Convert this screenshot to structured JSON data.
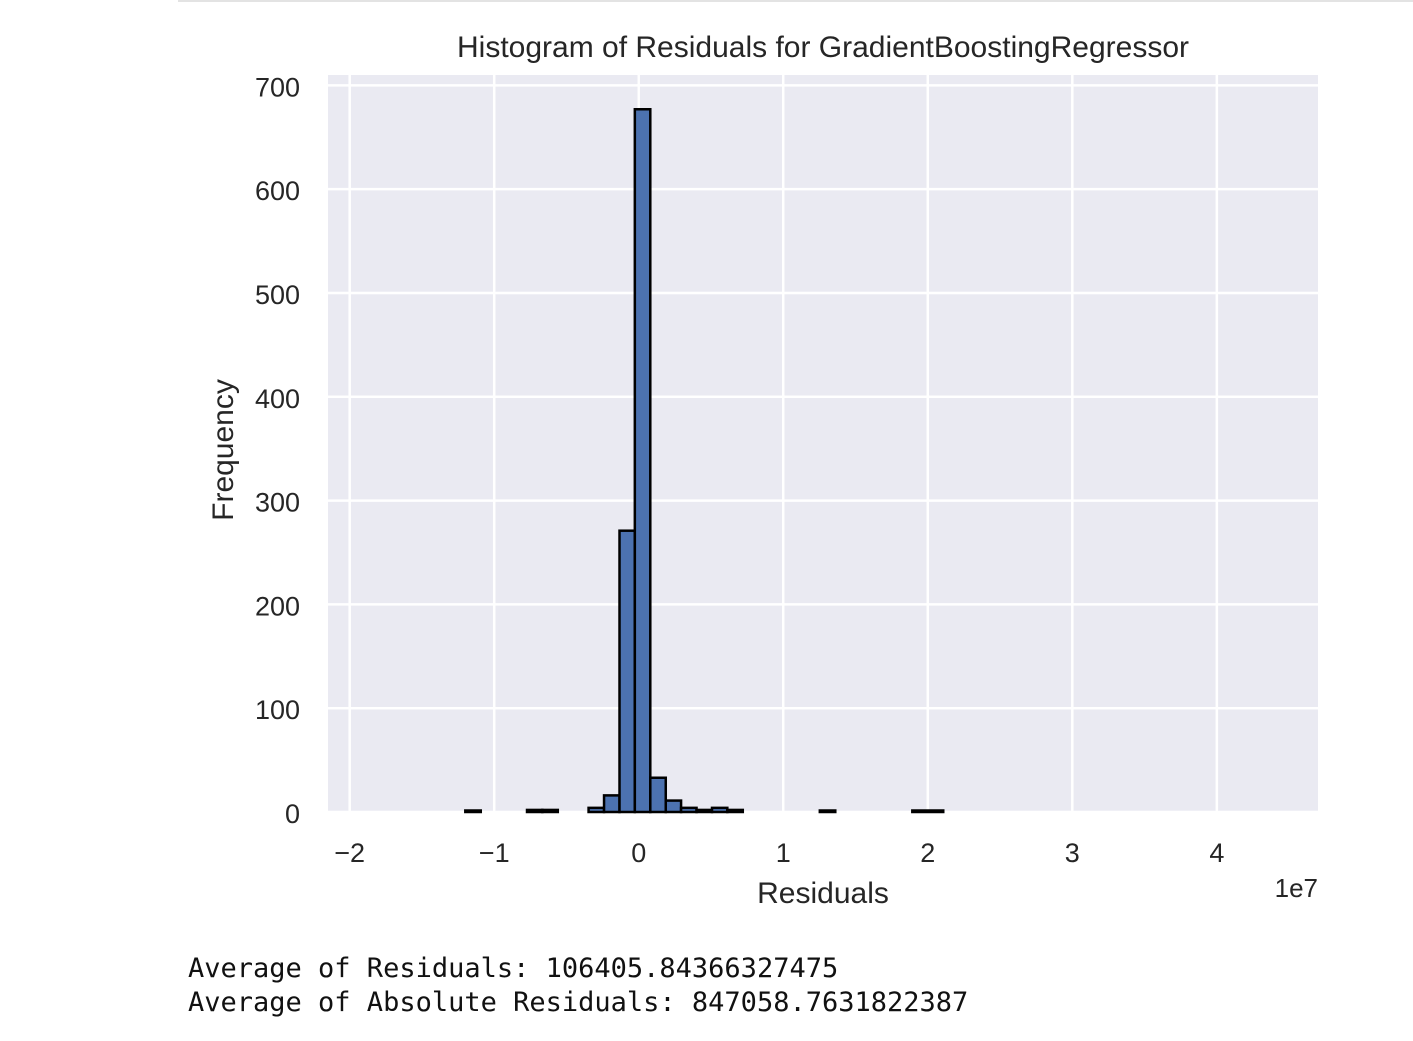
{
  "chart_data": {
    "type": "bar",
    "title": "Histogram of Residuals for GradientBoostingRegressor",
    "xlabel": "Residuals",
    "ylabel": "Frequency",
    "x_offset_label": "1e7",
    "xlim": [
      -2.15,
      4.7
    ],
    "ylim": [
      0,
      710
    ],
    "x_ticks": [
      -2,
      -1,
      0,
      1,
      2,
      3,
      4
    ],
    "x_tick_labels": [
      "−2",
      "−1",
      "0",
      "1",
      "2",
      "3",
      "4"
    ],
    "y_ticks": [
      0,
      100,
      200,
      300,
      400,
      500,
      600,
      700
    ],
    "y_tick_labels": [
      "0",
      "100",
      "200",
      "300",
      "400",
      "500",
      "600",
      "700"
    ],
    "grid": true,
    "bar_color": "#4c72b0",
    "bar_edge_color": "#000000",
    "background_color": "#eaeaf2",
    "bins": [
      {
        "x0": -1.2,
        "x1": -1.093,
        "count": 1
      },
      {
        "x0": -0.773,
        "x1": -0.667,
        "count": 2
      },
      {
        "x0": -0.667,
        "x1": -0.56,
        "count": 2
      },
      {
        "x0": -0.347,
        "x1": -0.24,
        "count": 4
      },
      {
        "x0": -0.24,
        "x1": -0.133,
        "count": 16
      },
      {
        "x0": -0.133,
        "x1": -0.027,
        "count": 271
      },
      {
        "x0": -0.027,
        "x1": 0.08,
        "count": 677
      },
      {
        "x0": 0.08,
        "x1": 0.187,
        "count": 33
      },
      {
        "x0": 0.187,
        "x1": 0.293,
        "count": 11
      },
      {
        "x0": 0.293,
        "x1": 0.4,
        "count": 4
      },
      {
        "x0": 0.4,
        "x1": 0.507,
        "count": 2
      },
      {
        "x0": 0.507,
        "x1": 0.613,
        "count": 4
      },
      {
        "x0": 0.613,
        "x1": 0.72,
        "count": 2
      },
      {
        "x0": 1.253,
        "x1": 1.36,
        "count": 1
      },
      {
        "x0": 1.893,
        "x1": 2.107,
        "count": 1
      }
    ]
  },
  "output": {
    "line1": "Average of Residuals: 106405.84366327475",
    "line2": "Average of Absolute Residuals: 847058.7631822387"
  }
}
